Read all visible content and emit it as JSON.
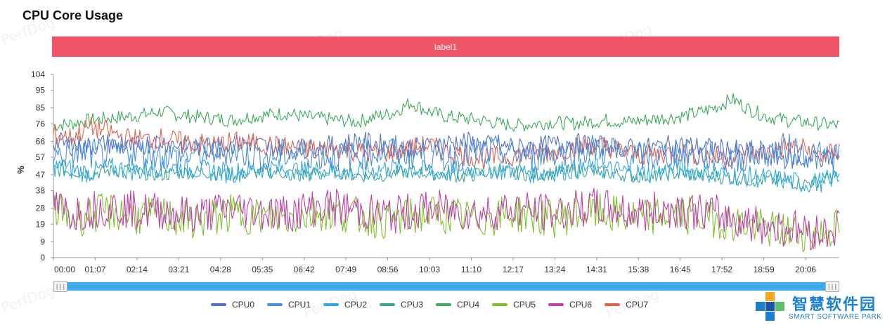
{
  "page": {
    "title": "CPU Core Usage",
    "label_bar": "label1",
    "watermark": "PerfDog"
  },
  "brand": {
    "name_cn": "智慧软件园",
    "name_en": "SMART SOFTWARE PARK"
  },
  "slider": {
    "left_grip": "|||",
    "right_grip": "|||",
    "start_fraction": 0,
    "end_fraction": 1
  },
  "chart_data": {
    "type": "line",
    "title": "CPU Core Usage",
    "xlabel": "",
    "ylabel": "%",
    "ylim": [
      0,
      104
    ],
    "yticks": [
      0,
      9,
      19,
      28,
      38,
      47,
      57,
      66,
      76,
      85,
      95,
      104
    ],
    "xticks": [
      "00:00",
      "01:07",
      "02:14",
      "03:21",
      "04:28",
      "05:35",
      "06:42",
      "07:49",
      "08:56",
      "10:03",
      "11:10",
      "12:17",
      "13:24",
      "14:31",
      "15:38",
      "16:45",
      "17:52",
      "18:59",
      "20:06"
    ],
    "x_end": "21:00",
    "grid": false,
    "legend_position": "bottom",
    "series": [
      {
        "name": "CPU0",
        "color": "#5470c6",
        "values": [
          66,
          64,
          63,
          65,
          62,
          64,
          66,
          64,
          63,
          62,
          64,
          65,
          63,
          62,
          61,
          63,
          64,
          66,
          65,
          63,
          62,
          63,
          65,
          66,
          64,
          63,
          62,
          63,
          64,
          65,
          64,
          63,
          62,
          62,
          63,
          64,
          63,
          62,
          61,
          60,
          58,
          56,
          55,
          57,
          56
        ]
      },
      {
        "name": "CPU1",
        "color": "#4a8ee0",
        "values": [
          57,
          60,
          59,
          58,
          61,
          60,
          58,
          57,
          59,
          60,
          61,
          58,
          57,
          59,
          60,
          58,
          57,
          58,
          60,
          61,
          59,
          58,
          57,
          58,
          60,
          61,
          59,
          58,
          60,
          61,
          62,
          60,
          58,
          57,
          58,
          59,
          58,
          57,
          56,
          58,
          60,
          62,
          60,
          57,
          58
        ]
      },
      {
        "name": "CPU2",
        "color": "#2fa9e6",
        "values": [
          52,
          50,
          48,
          51,
          50,
          49,
          52,
          51,
          50,
          49,
          48,
          50,
          51,
          50,
          49,
          50,
          49,
          48,
          50,
          51,
          50,
          49,
          48,
          50,
          51,
          50,
          49,
          48,
          49,
          50,
          51,
          50,
          49,
          48,
          49,
          50,
          49,
          48,
          47,
          46,
          45,
          44,
          42,
          43,
          46
        ]
      },
      {
        "name": "CPU3",
        "color": "#3ba58f",
        "values": [
          50,
          49,
          48,
          49,
          50,
          48,
          47,
          48,
          49,
          48,
          47,
          48,
          49,
          48,
          47,
          48,
          49,
          47,
          46,
          48,
          49,
          48,
          47,
          46,
          48,
          49,
          48,
          47,
          48,
          49,
          50,
          48,
          47,
          46,
          47,
          48,
          47,
          46,
          45,
          44,
          44,
          43,
          42,
          44,
          46
        ]
      },
      {
        "name": "CPU4",
        "color": "#3cab5a",
        "values": [
          75,
          76,
          78,
          79,
          80,
          81,
          83,
          81,
          80,
          79,
          78,
          80,
          81,
          82,
          80,
          79,
          78,
          77,
          80,
          82,
          88,
          83,
          80,
          79,
          78,
          76,
          75,
          76,
          77,
          76,
          77,
          78,
          77,
          78,
          79,
          80,
          82,
          85,
          90,
          84,
          80,
          78,
          77,
          76,
          75
        ]
      },
      {
        "name": "CPU5",
        "color": "#7ec12b",
        "values": [
          28,
          22,
          24,
          26,
          25,
          23,
          24,
          22,
          21,
          23,
          25,
          24,
          23,
          22,
          24,
          26,
          25,
          24,
          22,
          21,
          23,
          25,
          24,
          23,
          22,
          24,
          25,
          23,
          22,
          24,
          26,
          25,
          23,
          22,
          24,
          25,
          23,
          22,
          20,
          18,
          16,
          15,
          14,
          13,
          18
        ]
      },
      {
        "name": "CPU6",
        "color": "#c33ea8",
        "values": [
          30,
          25,
          27,
          29,
          28,
          26,
          27,
          25,
          24,
          26,
          28,
          27,
          26,
          25,
          27,
          29,
          28,
          27,
          25,
          24,
          26,
          28,
          27,
          26,
          25,
          27,
          28,
          26,
          25,
          27,
          29,
          28,
          26,
          25,
          27,
          28,
          26,
          25,
          22,
          20,
          18,
          17,
          16,
          14,
          18
        ]
      },
      {
        "name": "CPU7",
        "color": "#e0624d",
        "values": [
          70,
          68,
          74,
          72,
          68,
          67,
          68,
          66,
          65,
          64,
          66,
          65,
          64,
          63,
          62,
          61,
          62,
          60,
          59,
          60,
          62,
          64,
          60,
          58,
          56,
          57,
          58,
          59,
          60,
          62,
          64,
          63,
          60,
          58,
          59,
          60,
          58,
          57,
          56,
          58,
          60,
          63,
          62,
          58,
          60
        ]
      }
    ]
  }
}
